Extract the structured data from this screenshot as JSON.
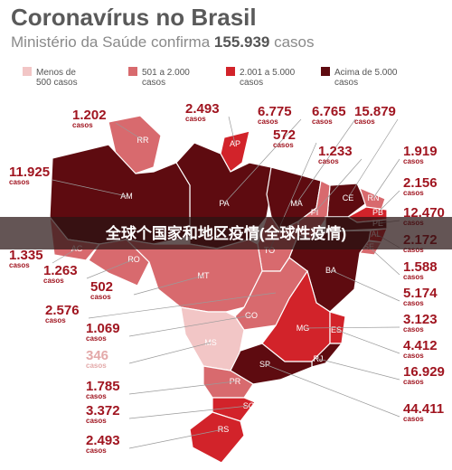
{
  "header": {
    "title": "Coronavírus no Brasil",
    "subtitle": {
      "text": "Ministério da Saúde confirma",
      "count": "155.939",
      "unit": "casos"
    }
  },
  "legend": [
    {
      "label": "Menos de\n500 casos",
      "color": "#f2c6c6"
    },
    {
      "label": "501 a 2.000\ncasos",
      "color": "#d86a6e"
    },
    {
      "label": "2.001 a 5.000\ncasos",
      "color": "#d2232a"
    },
    {
      "label": "Acima de 5.000\ncasos",
      "color": "#5e0b10"
    }
  ],
  "states": [
    {
      "abbr": "RR",
      "cases": "1.202",
      "unit": "casos",
      "color": "#d86a6e"
    },
    {
      "abbr": "AP",
      "cases": "2.493",
      "unit": "casos",
      "color": "#d2232a"
    },
    {
      "abbr": "PA",
      "cases": "6.775",
      "unit": "casos",
      "color": "#5e0b10"
    },
    {
      "abbr": "MA",
      "cases": "6.765",
      "unit": "casos",
      "color": "#5e0b10"
    },
    {
      "abbr": "CE",
      "cases": "15.879",
      "unit": "casos",
      "color": "#5e0b10"
    },
    {
      "abbr": "TO",
      "cases": "572",
      "unit": "casos",
      "color": "#d86a6e"
    },
    {
      "abbr": "PI",
      "cases": "1.233",
      "unit": "casos",
      "color": "#d86a6e"
    },
    {
      "abbr": "RN",
      "cases": "1.919",
      "unit": "casos",
      "color": "#d86a6e"
    },
    {
      "abbr": "PB",
      "cases": "2.156",
      "unit": "casos",
      "color": "#d2232a"
    },
    {
      "abbr": "PE",
      "cases": "12.470",
      "unit": "casos",
      "color": "#5e0b10"
    },
    {
      "abbr": "AL",
      "cases": "2.172",
      "unit": "casos",
      "color": "#d2232a"
    },
    {
      "abbr": "SE",
      "cases": "1.588",
      "unit": "casos",
      "color": "#d86a6e"
    },
    {
      "abbr": "BA",
      "cases": "5.174",
      "unit": "casos",
      "color": "#5e0b10"
    },
    {
      "abbr": "MG",
      "cases": "3.123",
      "unit": "casos",
      "color": "#d2232a"
    },
    {
      "abbr": "ES",
      "cases": "4.412",
      "unit": "casos",
      "color": "#d2232a"
    },
    {
      "abbr": "RJ",
      "cases": "16.929",
      "unit": "casos",
      "color": "#5e0b10"
    },
    {
      "abbr": "SP",
      "cases": "44.411",
      "unit": "casos",
      "color": "#5e0b10"
    },
    {
      "abbr": "AM",
      "cases": "11.925",
      "unit": "casos",
      "color": "#5e0b10"
    },
    {
      "abbr": "AC",
      "cases": "1.335",
      "unit": "casos",
      "color": "#d86a6e"
    },
    {
      "abbr": "RO",
      "cases": "1.263",
      "unit": "casos",
      "color": "#d86a6e"
    },
    {
      "abbr": "MT",
      "cases": "502",
      "unit": "casos",
      "color": "#d86a6e"
    },
    {
      "abbr": "DF",
      "cases": "2.576",
      "unit": "casos",
      "color": "#d2232a"
    },
    {
      "abbr": "GO",
      "cases": "1.069",
      "unit": "casos",
      "color": "#d86a6e"
    },
    {
      "abbr": "MS",
      "cases": "346",
      "unit": "casos",
      "color": "#f2c6c6"
    },
    {
      "abbr": "PR",
      "cases": "1.785",
      "unit": "casos",
      "color": "#d86a6e"
    },
    {
      "abbr": "SC",
      "cases": "3.372",
      "unit": "casos",
      "color": "#d2232a"
    },
    {
      "abbr": "RS",
      "cases": "2.493",
      "unit": "casos",
      "color": "#d2232a"
    }
  ],
  "banner": "全球个国家和地区疫情(全球性疫情)"
}
